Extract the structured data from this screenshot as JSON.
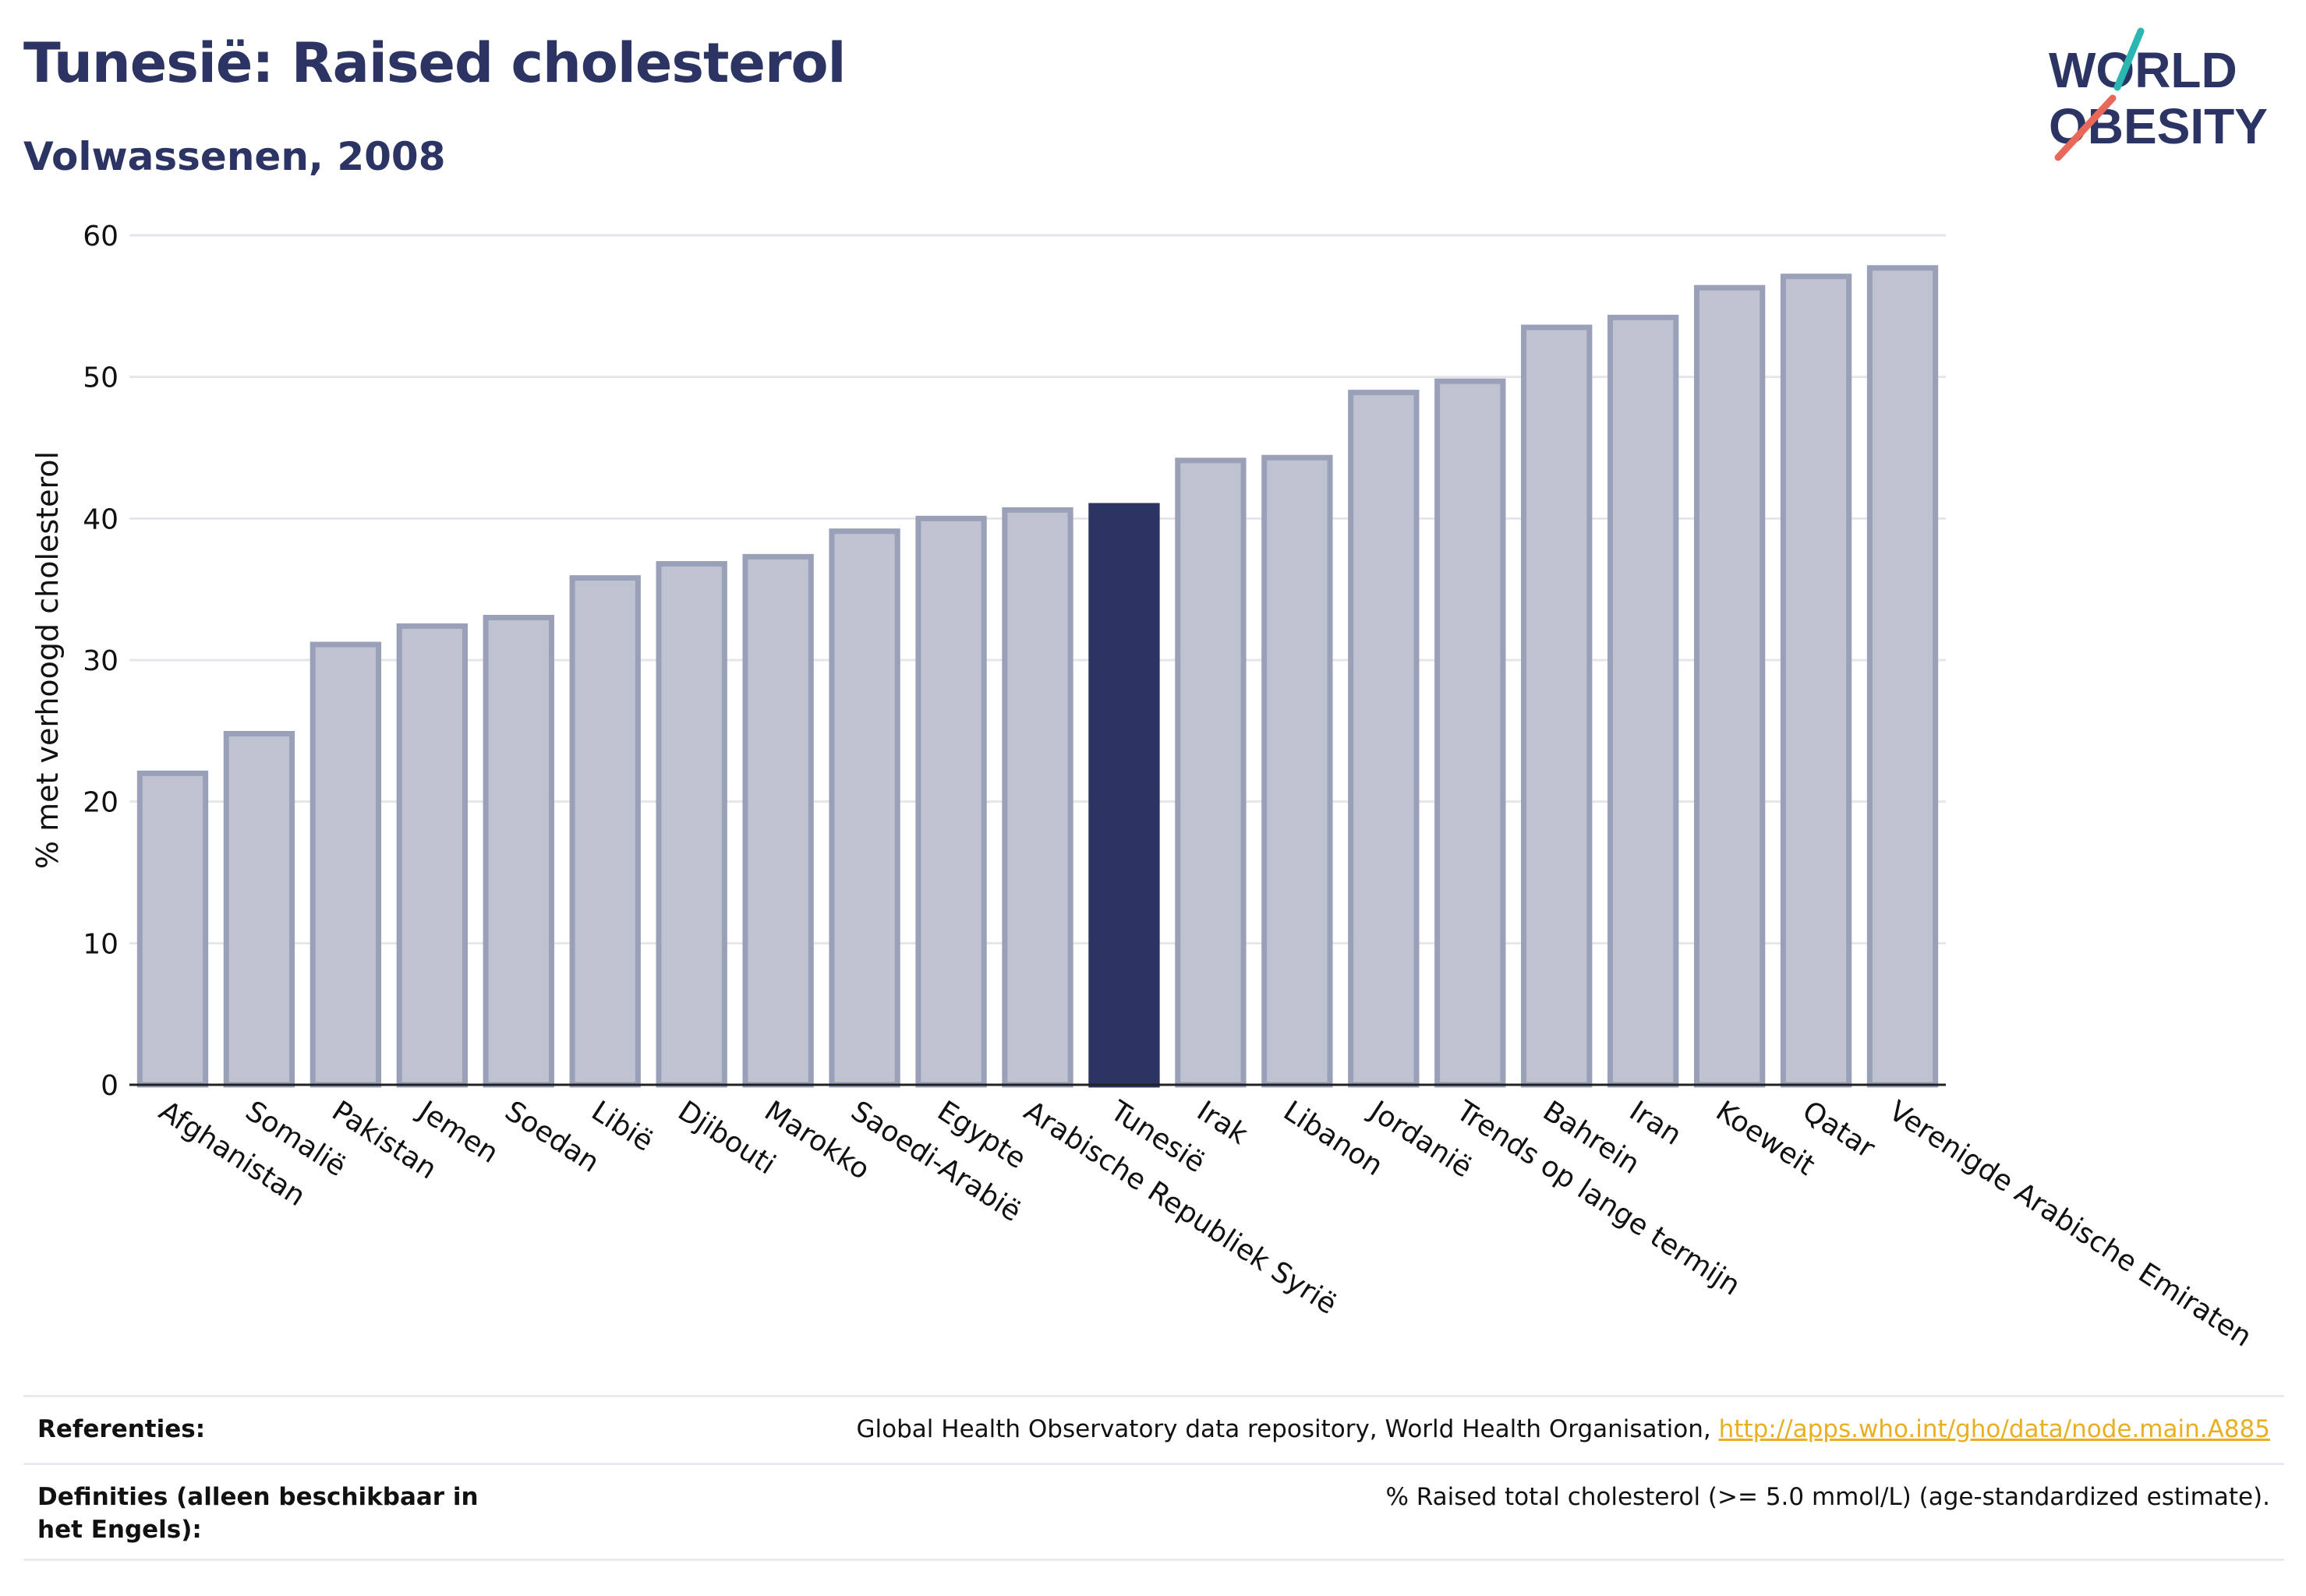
{
  "header": {
    "title": "Tunesië: Raised cholesterol",
    "subtitle": "Volwassenen, 2008"
  },
  "logo": {
    "line1": "WORLD",
    "line2": "OBESITY",
    "accent_colors": [
      "#2ab7b1",
      "#e8685a"
    ],
    "text_color": "#2b3462"
  },
  "chart_data": {
    "type": "bar",
    "ylabel": "% met verhoogd cholesterol",
    "xlabel": "",
    "ylim": [
      0,
      60
    ],
    "yticks": [
      0,
      10,
      20,
      30,
      40,
      50,
      60
    ],
    "grid": true,
    "highlight_category": "Tunesië",
    "colors": {
      "bar": "#bfc3d1",
      "bar_stroke": "#9aa0b8",
      "highlight": "#2b3462"
    },
    "categories": [
      "Afghanistan",
      "Somalië",
      "Pakistan",
      "Jemen",
      "Soedan",
      "Libië",
      "Djibouti",
      "Marokko",
      "Saoedi-Arabië",
      "Egypte",
      "Arabische Republiek Syrië",
      "Tunesië",
      "Irak",
      "Libanon",
      "Jordanië",
      "Trends op lange termijn",
      "Bahrein",
      "Iran",
      "Koeweit",
      "Qatar",
      "Verenigde Arabische Emiraten"
    ],
    "values": [
      22.0,
      24.8,
      31.1,
      32.4,
      33.0,
      35.8,
      36.8,
      37.3,
      39.1,
      40.0,
      40.6,
      40.9,
      44.1,
      44.3,
      48.9,
      49.7,
      53.5,
      54.2,
      56.3,
      57.1,
      57.7
    ]
  },
  "references": {
    "refs_label": "Referenties:",
    "refs_text": "Global Health Observatory data repository, World Health Organisation, ",
    "refs_link": "http://apps.who.int/gho/data/node.main.A885",
    "defs_label": "Definities (alleen beschikbaar in het Engels):",
    "defs_text": "% Raised total cholesterol (>= 5.0 mmol/L) (age-standardized estimate)."
  }
}
